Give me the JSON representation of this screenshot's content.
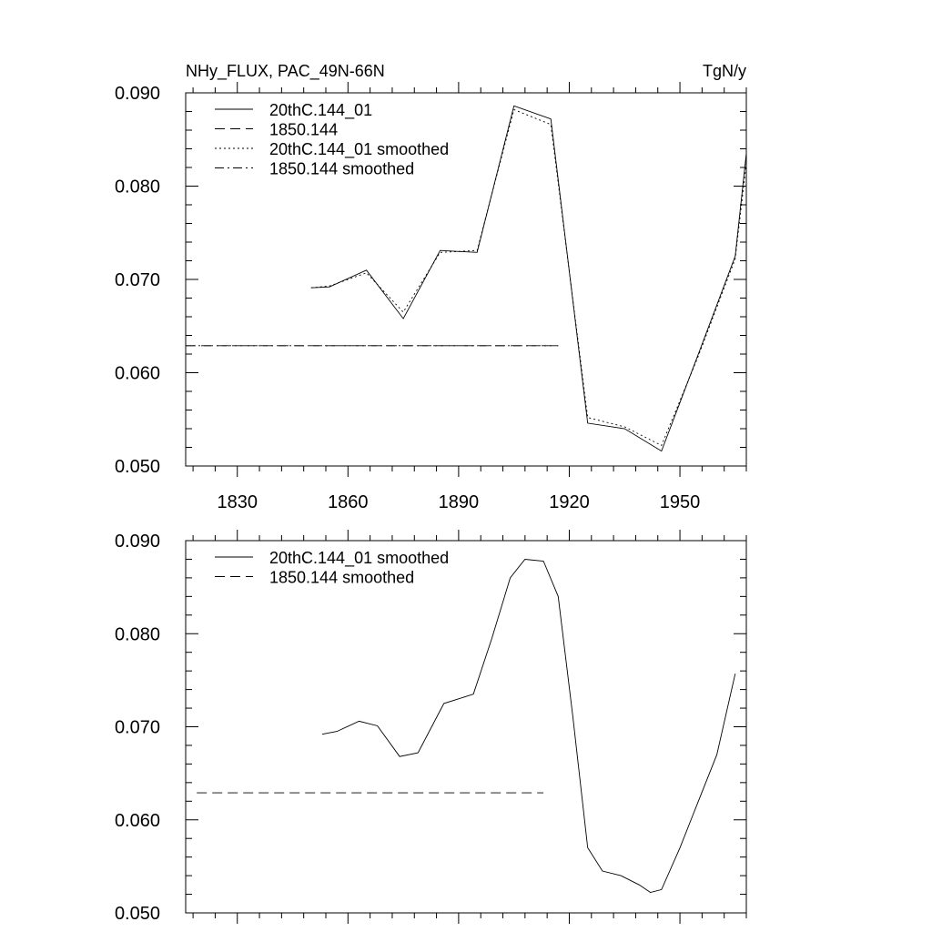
{
  "chart_data": [
    {
      "type": "line",
      "title_left": "NHy_FLUX, PAC_49N-66N",
      "title_right": "TgN/y",
      "xlim": [
        1816,
        1968
      ],
      "ylim": [
        0.05,
        0.09
      ],
      "x_ticks": [
        1830,
        1860,
        1890,
        1920,
        1950
      ],
      "x_tick_labels": [
        "1830",
        "1860",
        "1890",
        "1920",
        "1950"
      ],
      "y_ticks": [
        0.05,
        0.06,
        0.07,
        0.08,
        0.09
      ],
      "y_tick_labels": [
        "0.050",
        "0.060",
        "0.070",
        "0.080",
        "0.090"
      ],
      "legend": [
        "20thC.144_01",
        "1850.144",
        "20thC.144_01 smoothed",
        "1850.144 smoothed"
      ],
      "series": [
        {
          "name": "20thC.144_01",
          "style": "solid",
          "x": [
            1850,
            1855,
            1865,
            1875,
            1885,
            1895,
            1905,
            1915,
            1925,
            1935,
            1945,
            1955,
            1965,
            1968
          ],
          "values": [
            0.0691,
            0.0692,
            0.071,
            0.0658,
            0.0731,
            0.0729,
            0.0886,
            0.0872,
            0.0546,
            0.054,
            0.0516,
            0.062,
            0.0725,
            0.0835
          ]
        },
        {
          "name": "1850.144",
          "style": "dash",
          "x": [
            1816,
            1917
          ],
          "values": [
            0.0629,
            0.0629
          ]
        },
        {
          "name": "20thC.144_01 smoothed",
          "style": "dot",
          "x": [
            1850,
            1855,
            1865,
            1875,
            1885,
            1895,
            1905,
            1915,
            1925,
            1935,
            1945,
            1955,
            1965,
            1968
          ],
          "values": [
            0.0691,
            0.0693,
            0.0707,
            0.0665,
            0.0729,
            0.0731,
            0.0882,
            0.0866,
            0.0552,
            0.0542,
            0.0522,
            0.0618,
            0.0722,
            0.0825
          ]
        },
        {
          "name": "1850.144 smoothed",
          "style": "dashdot",
          "x": [
            1816,
            1917
          ],
          "values": [
            0.0629,
            0.0629
          ]
        }
      ]
    },
    {
      "type": "line",
      "xlim": [
        1816,
        1968
      ],
      "ylim": [
        0.05,
        0.09
      ],
      "x_ticks": [
        1830,
        1860,
        1890,
        1920,
        1950
      ],
      "y_ticks": [
        0.05,
        0.06,
        0.07,
        0.08,
        0.09
      ],
      "y_tick_labels": [
        "0.050",
        "0.060",
        "0.070",
        "0.080",
        "0.090"
      ],
      "legend": [
        "20thC.144_01 smoothed",
        "1850.144 smoothed"
      ],
      "series": [
        {
          "name": "20thC.144_01 smoothed",
          "style": "solid",
          "x": [
            1853,
            1857,
            1863,
            1868,
            1874,
            1879,
            1886,
            1890,
            1894,
            1899,
            1904,
            1908,
            1913,
            1917,
            1921,
            1925,
            1929,
            1934,
            1939,
            1942,
            1945,
            1950,
            1955,
            1960,
            1965
          ],
          "values": [
            0.0692,
            0.0695,
            0.0706,
            0.0701,
            0.0668,
            0.0672,
            0.0725,
            0.073,
            0.0735,
            0.0795,
            0.086,
            0.088,
            0.0878,
            0.084,
            0.071,
            0.057,
            0.0545,
            0.054,
            0.053,
            0.0522,
            0.0525,
            0.057,
            0.062,
            0.067,
            0.0757
          ]
        },
        {
          "name": "1850.144 smoothed",
          "style": "dash",
          "x": [
            1819,
            1913
          ],
          "values": [
            0.0629,
            0.0629
          ]
        }
      ]
    }
  ]
}
